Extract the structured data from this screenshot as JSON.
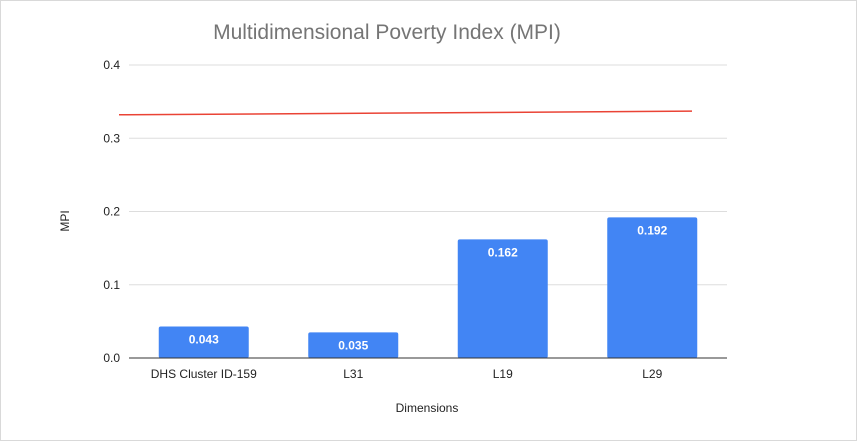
{
  "chart_data": {
    "type": "bar",
    "title": "Multidimensional Poverty Index (MPI)",
    "xlabel": "Dimensions",
    "ylabel": "MPI",
    "categories": [
      "DHS Cluster ID-159",
      "L31",
      "L19",
      "L29"
    ],
    "values": [
      0.043,
      0.035,
      0.162,
      0.192
    ],
    "data_labels": [
      "0.043",
      "0.035",
      "0.162",
      "0.192"
    ],
    "y_ticks": [
      "0.0",
      "0.1",
      "0.2",
      "0.3",
      "0.4"
    ],
    "ylim": [
      0,
      0.4
    ],
    "reference_line": {
      "y_start": 0.332,
      "y_end": 0.337,
      "color": "#ea4335"
    },
    "bar_color": "#4285f4",
    "grid": true,
    "legend": "none"
  }
}
